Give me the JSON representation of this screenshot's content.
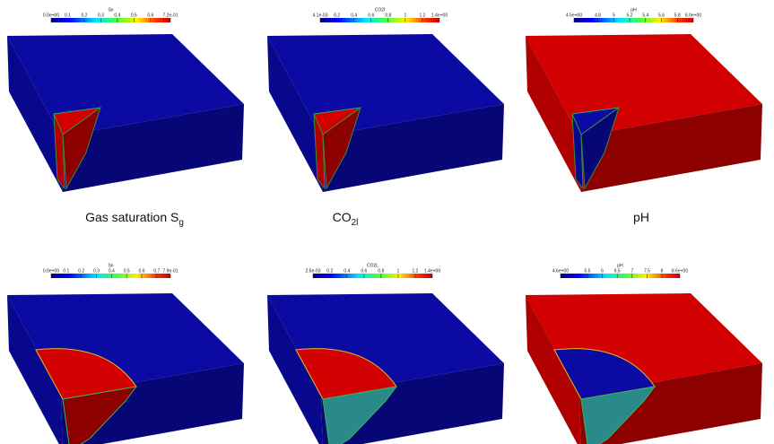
{
  "panels": [
    {
      "colorbar": {
        "title": "Sn",
        "ticks": [
          {
            "value": 0,
            "label": "0.0e+00"
          },
          0.1,
          0.2,
          0.3,
          0.4,
          0.5,
          0.6,
          {
            "value": 0.72,
            "label": "7.2e-01"
          }
        ]
      },
      "caption": {
        "text": "Gas saturation S",
        "sub": "g"
      }
    },
    {
      "colorbar": {
        "title": "CO2l",
        "ticks": [
          {
            "value": 0.0041,
            "label": "4.1e-03"
          },
          0.2,
          0.4,
          0.6,
          0.8,
          1,
          1.2,
          {
            "value": 1.4,
            "label": "1.4e+00"
          }
        ]
      },
      "caption": {
        "text": "CO",
        "sub": "2l"
      }
    },
    {
      "colorbar": {
        "title": "pH",
        "ticks": [
          {
            "value": 4.5,
            "label": "4.5e+00"
          },
          4.8,
          5,
          5.2,
          5.4,
          5.6,
          5.8,
          {
            "value": 6,
            "label": "6.0e+00"
          }
        ]
      },
      "caption": {
        "text": "pH"
      }
    },
    {
      "colorbar": {
        "title": "Sn",
        "ticks": [
          {
            "value": 0,
            "label": "0.0e+00"
          },
          0.1,
          0.2,
          0.3,
          0.4,
          0.5,
          0.6,
          0.7,
          {
            "value": 0.79,
            "label": "7.9e-01"
          }
        ]
      }
    },
    {
      "colorbar": {
        "title": "CO2L",
        "ticks": [
          {
            "value": 0.0026,
            "label": "2.6e-03"
          },
          0.2,
          0.4,
          0.6,
          0.8,
          1,
          1.2,
          {
            "value": 1.4,
            "label": "1.4e+00"
          }
        ]
      }
    },
    {
      "colorbar": {
        "title": "pH",
        "ticks": [
          {
            "value": 4.6,
            "label": "4.6e+00"
          },
          5.5,
          6,
          6.5,
          7,
          7.5,
          8,
          {
            "value": 8.6,
            "label": "8.6e+00"
          }
        ]
      }
    }
  ]
}
